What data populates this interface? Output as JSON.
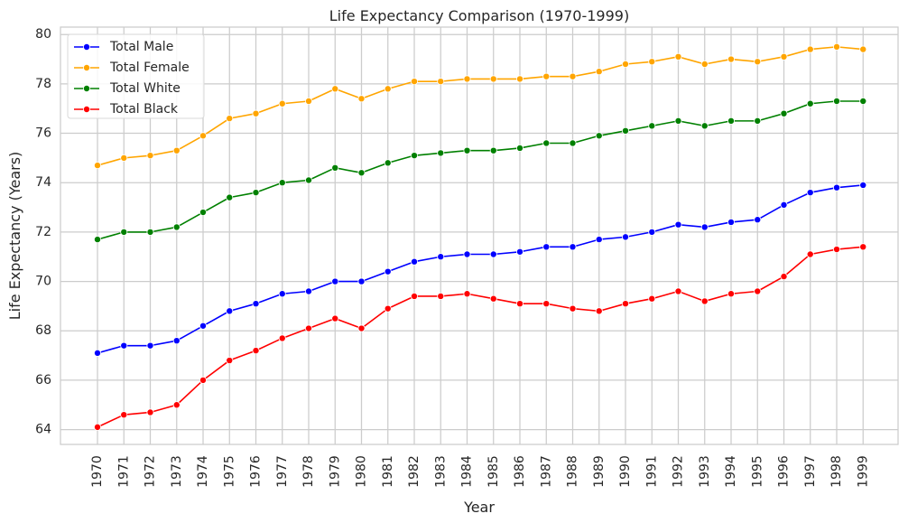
{
  "chart_data": {
    "type": "line",
    "title": "Life Expectancy Comparison (1970-1999)",
    "xlabel": "Year",
    "ylabel": "Life Expectancy (Years)",
    "x": [
      "1970",
      "1971",
      "1972",
      "1973",
      "1974",
      "1975",
      "1976",
      "1977",
      "1978",
      "1979",
      "1980",
      "1981",
      "1982",
      "1983",
      "1984",
      "1985",
      "1986",
      "1987",
      "1988",
      "1989",
      "1990",
      "1991",
      "1992",
      "1993",
      "1994",
      "1995",
      "1996",
      "1997",
      "1998",
      "1999"
    ],
    "ylim": [
      63.4,
      80.3
    ],
    "yticks": [
      "64",
      "66",
      "68",
      "70",
      "72",
      "74",
      "76",
      "78",
      "80"
    ],
    "grid": true,
    "legend_position": "top-left",
    "marker": "circle",
    "series": [
      {
        "name": "Total Male",
        "color": "#0000ff",
        "values": [
          67.1,
          67.4,
          67.4,
          67.6,
          68.2,
          68.8,
          69.1,
          69.5,
          69.6,
          70.0,
          70.0,
          70.4,
          70.8,
          71.0,
          71.1,
          71.1,
          71.2,
          71.4,
          71.4,
          71.7,
          71.8,
          72.0,
          72.3,
          72.2,
          72.4,
          72.5,
          73.1,
          73.6,
          73.8,
          73.9
        ]
      },
      {
        "name": "Total Female",
        "color": "#ffa500",
        "values": [
          74.7,
          75.0,
          75.1,
          75.3,
          75.9,
          76.6,
          76.8,
          77.2,
          77.3,
          77.8,
          77.4,
          77.8,
          78.1,
          78.1,
          78.2,
          78.2,
          78.2,
          78.3,
          78.3,
          78.5,
          78.8,
          78.9,
          79.1,
          78.8,
          79.0,
          78.9,
          79.1,
          79.4,
          79.5,
          79.4
        ]
      },
      {
        "name": "Total White",
        "color": "#008000",
        "values": [
          71.7,
          72.0,
          72.0,
          72.2,
          72.8,
          73.4,
          73.6,
          74.0,
          74.1,
          74.6,
          74.4,
          74.8,
          75.1,
          75.2,
          75.3,
          75.3,
          75.4,
          75.6,
          75.6,
          75.9,
          76.1,
          76.3,
          76.5,
          76.3,
          76.5,
          76.5,
          76.8,
          77.2,
          77.3,
          77.3
        ]
      },
      {
        "name": "Total Black",
        "color": "#ff0000",
        "values": [
          64.1,
          64.6,
          64.7,
          65.0,
          66.0,
          66.8,
          67.2,
          67.7,
          68.1,
          68.5,
          68.1,
          68.9,
          69.4,
          69.4,
          69.5,
          69.3,
          69.1,
          69.1,
          68.9,
          68.8,
          69.1,
          69.3,
          69.6,
          69.2,
          69.5,
          69.6,
          70.2,
          71.1,
          71.3,
          71.4
        ]
      }
    ]
  }
}
